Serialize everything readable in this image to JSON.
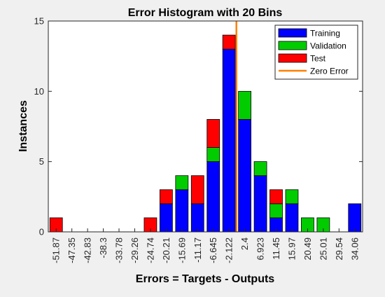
{
  "chart_data": {
    "type": "bar",
    "stacked": true,
    "title": "Error Histogram with 20 Bins",
    "xlabel": "Errors = Targets - Outputs",
    "ylabel": "Instances",
    "ylim": [
      0,
      15
    ],
    "yticks": [
      "0",
      "5",
      "10",
      "15"
    ],
    "categories": [
      "-51.87",
      "-47.35",
      "-42.83",
      "-38.3",
      "-33.78",
      "-29.26",
      "-24.74",
      "-20.21",
      "-15.69",
      "-11.17",
      "-6.645",
      "-2.122",
      "2.4",
      "6.923",
      "11.45",
      "15.97",
      "20.49",
      "25.01",
      "29.54",
      "34.06"
    ],
    "series": [
      {
        "name": "Training",
        "color": "#0000ff",
        "values": [
          0,
          0,
          0,
          0,
          0,
          0,
          0,
          2,
          3,
          2,
          5,
          13,
          8,
          4,
          1,
          2,
          0,
          0,
          0,
          2
        ]
      },
      {
        "name": "Validation",
        "color": "#00cc00",
        "values": [
          0,
          0,
          0,
          0,
          0,
          0,
          0,
          0,
          1,
          0,
          1,
          0,
          2,
          1,
          1,
          1,
          1,
          1,
          0,
          0
        ]
      },
      {
        "name": "Test",
        "color": "#ff0000",
        "values": [
          1,
          0,
          0,
          0,
          0,
          0,
          1,
          1,
          0,
          2,
          2,
          1,
          0,
          0,
          1,
          0,
          0,
          0,
          0,
          0
        ]
      }
    ],
    "zero_error": {
      "name": "Zero Error",
      "color": "#ff8000",
      "x_value": 0
    },
    "legend_position": "top-right",
    "grid": false
  }
}
